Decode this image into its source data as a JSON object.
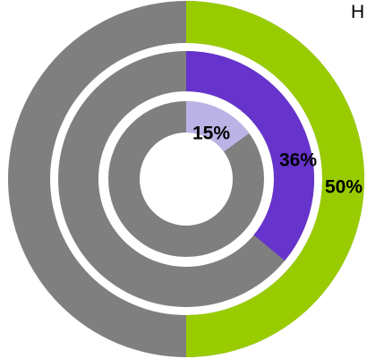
{
  "chart_data": {
    "type": "radial-ring",
    "corner_label": "H",
    "rings": [
      {
        "value": 50,
        "label": "50%",
        "color": "#99cc00",
        "track_color": "#7f7f7f"
      },
      {
        "value": 36,
        "label": "36%",
        "color": "#6633cc",
        "track_color": "#7f7f7f"
      },
      {
        "value": 15,
        "label": "15%",
        "color": "#bbb3e6",
        "track_color": "#7f7f7f"
      }
    ],
    "max": 100
  }
}
